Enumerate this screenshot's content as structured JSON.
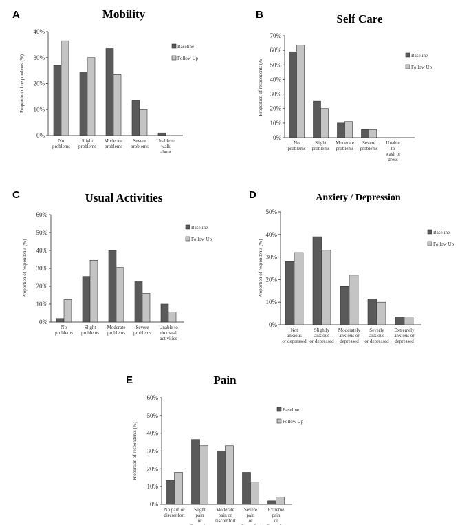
{
  "series_colors": [
    "#5a5a5a",
    "#c4c4c4"
  ],
  "chart_data": [
    {
      "id": "A",
      "panel_label": "A",
      "type": "bar",
      "title": "Mobility",
      "ylabel": "Proportion of respondents (%)",
      "ylim": [
        0,
        40
      ],
      "yticks": [
        0,
        10,
        20,
        30,
        40
      ],
      "categories": [
        [
          "No",
          "problems"
        ],
        [
          "Slight",
          "problems"
        ],
        [
          "Moderate",
          "problems"
        ],
        [
          "Severe",
          "problems"
        ],
        [
          "Unable to",
          "walk",
          "about"
        ]
      ],
      "series": [
        {
          "name": "Baseline",
          "values": [
            27,
            24.5,
            33.5,
            13.5,
            1
          ]
        },
        {
          "name": "Follow Up",
          "values": [
            36.5,
            30,
            23.5,
            10,
            0
          ]
        }
      ],
      "legend_position": "right"
    },
    {
      "id": "B",
      "panel_label": "B",
      "type": "bar",
      "title": "Self Care",
      "ylabel": "Proportion of respondents (%)",
      "ylim": [
        0,
        70
      ],
      "yticks": [
        0,
        10,
        20,
        30,
        40,
        50,
        60,
        70
      ],
      "categories": [
        [
          "No",
          "problems"
        ],
        [
          "Slight",
          "problems"
        ],
        [
          "Moderate",
          "problems"
        ],
        [
          "Severe",
          "problems"
        ],
        [
          "Unable",
          "to",
          "wash or",
          "dress"
        ]
      ],
      "series": [
        {
          "name": "Baseline",
          "values": [
            59,
            25,
            10,
            5.5,
            0
          ]
        },
        {
          "name": "Follow Up",
          "values": [
            63.5,
            20,
            11,
            5.5,
            0
          ]
        }
      ],
      "legend_position": "right"
    },
    {
      "id": "C",
      "panel_label": "C",
      "type": "bar",
      "title": "Usual Activities",
      "ylabel": "Proportion of respondents (%)",
      "ylim": [
        0,
        60
      ],
      "yticks": [
        0,
        10,
        20,
        30,
        40,
        50,
        60
      ],
      "categories": [
        [
          "No",
          "problems"
        ],
        [
          "Slight",
          "problems"
        ],
        [
          "Moderate",
          "problems"
        ],
        [
          "Severe",
          "problems"
        ],
        [
          "Unable to",
          "do usual",
          "activities"
        ]
      ],
      "series": [
        {
          "name": "Baseline",
          "values": [
            2,
            25.5,
            40,
            22.5,
            10
          ]
        },
        {
          "name": "Follow Up",
          "values": [
            12.5,
            34.5,
            30.5,
            16,
            5.5
          ]
        }
      ],
      "legend_position": "right"
    },
    {
      "id": "D",
      "panel_label": "D",
      "type": "bar",
      "title": "Anxiety / Depression",
      "ylabel": "Proportion of respondents (%)",
      "ylim": [
        0,
        50
      ],
      "yticks": [
        0,
        10,
        20,
        30,
        40,
        50
      ],
      "categories": [
        [
          "Not",
          "anxious",
          "or depressed"
        ],
        [
          "Slightly",
          "anxious",
          "or depressed"
        ],
        [
          "Moderately",
          "anxious or",
          "depressed"
        ],
        [
          "Severly",
          "anxious",
          "or depressed"
        ],
        [
          "Extremely",
          "anxious or",
          "depressed"
        ]
      ],
      "series": [
        {
          "name": "Baseline",
          "values": [
            28,
            39,
            17,
            11.5,
            3.5
          ]
        },
        {
          "name": "Follow Up",
          "values": [
            32,
            33,
            22,
            10,
            3.5
          ]
        }
      ],
      "legend_position": "right"
    },
    {
      "id": "E",
      "panel_label": "E",
      "type": "bar",
      "title": "Pain",
      "ylabel": "Proportion of respondents (%)",
      "ylim": [
        0,
        60
      ],
      "yticks": [
        0,
        10,
        20,
        30,
        40,
        50,
        60
      ],
      "categories": [
        [
          "No pain or",
          "discomfort"
        ],
        [
          "Slight",
          "pain",
          "or",
          "discomfort"
        ],
        [
          "Moderate",
          "pain or",
          "discomfort"
        ],
        [
          "Severe",
          "pain",
          "or",
          "discomfort"
        ],
        [
          "Extreme",
          "pain",
          "or",
          "discomfort"
        ]
      ],
      "series": [
        {
          "name": "Baseline",
          "values": [
            13.5,
            36.5,
            30,
            18,
            2
          ]
        },
        {
          "name": "Follow Up",
          "values": [
            18,
            33,
            33,
            12.5,
            4
          ]
        }
      ],
      "legend_position": "right"
    }
  ]
}
